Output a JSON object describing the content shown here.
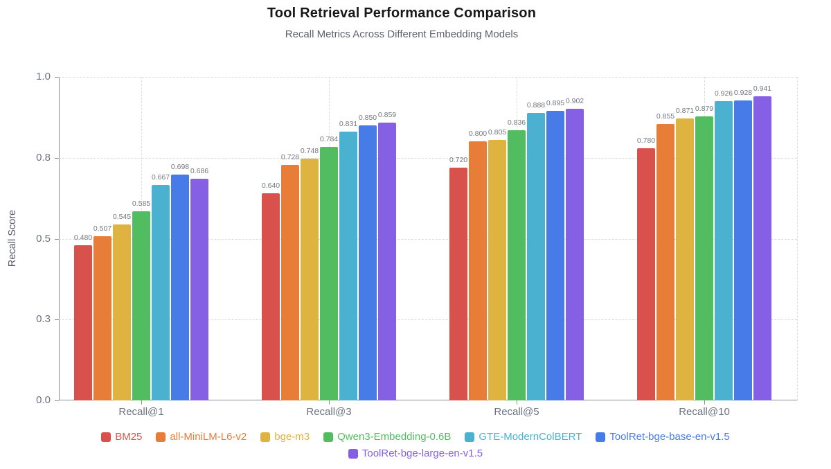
{
  "title": "Tool Retrieval Performance Comparison",
  "subtitle": "Recall Metrics Across Different Embedding Models",
  "chart_data": {
    "type": "bar",
    "title": "Tool Retrieval Performance Comparison",
    "subtitle": "Recall Metrics Across Different Embedding Models",
    "xlabel": "",
    "ylabel": "Recall Score",
    "ylim": [
      0,
      1.0
    ],
    "grid": "dashed horizontal and vertical",
    "legend_position": "bottom",
    "value_label_decimals": 3,
    "categories": [
      "Recall@1",
      "Recall@3",
      "Recall@5",
      "Recall@10"
    ],
    "yticks": [
      {
        "value": 0.0,
        "label": "0.0"
      },
      {
        "value": 0.25,
        "label": "0.3"
      },
      {
        "value": 0.5,
        "label": "0.5"
      },
      {
        "value": 0.75,
        "label": "0.8"
      },
      {
        "value": 1.0,
        "label": "1.0"
      }
    ],
    "series": [
      {
        "name": "BM25",
        "color": "#d9514d",
        "values": [
          0.48,
          0.64,
          0.72,
          0.78
        ]
      },
      {
        "name": "all-MiniLM-L6-v2",
        "color": "#e87d37",
        "values": [
          0.507,
          0.728,
          0.8,
          0.855
        ]
      },
      {
        "name": "bge-m3",
        "color": "#dfb340",
        "values": [
          0.545,
          0.748,
          0.805,
          0.871
        ]
      },
      {
        "name": "Qwen3-Embedding-0.6B",
        "color": "#52bc60",
        "values": [
          0.585,
          0.784,
          0.836,
          0.879
        ]
      },
      {
        "name": "GTE-ModernColBERT",
        "color": "#4bb1d1",
        "values": [
          0.667,
          0.831,
          0.888,
          0.926
        ]
      },
      {
        "name": "ToolRet-bge-base-en-v1.5",
        "color": "#477ce8",
        "values": [
          0.698,
          0.85,
          0.895,
          0.928
        ]
      },
      {
        "name": "ToolRet-bge-large-en-v1.5",
        "color": "#8560e4",
        "values": [
          0.686,
          0.859,
          0.902,
          0.941
        ]
      }
    ]
  }
}
